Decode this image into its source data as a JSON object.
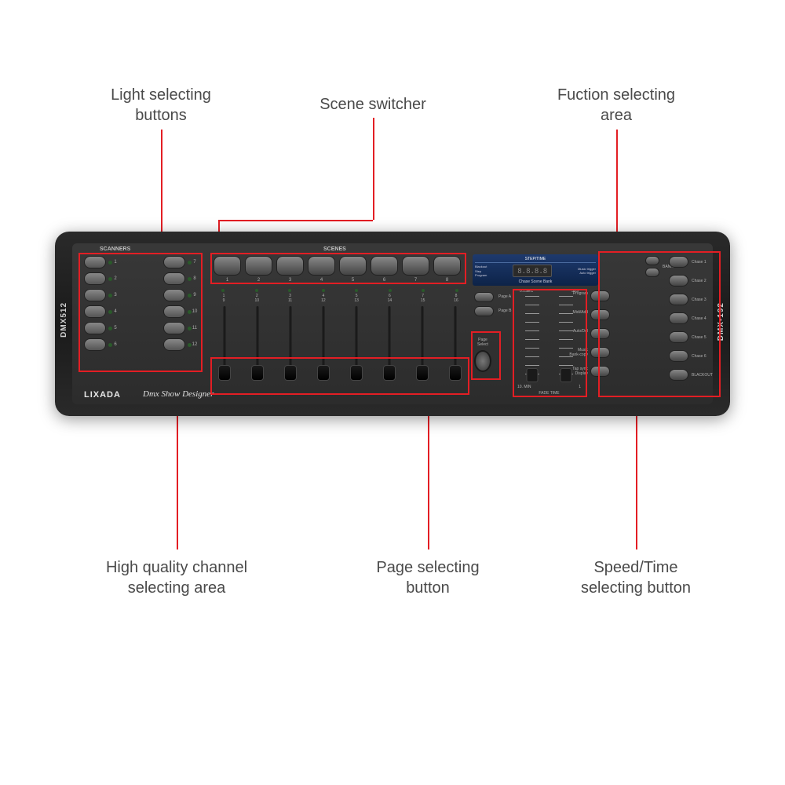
{
  "callouts": {
    "top_left": "Light selecting\nbuttons",
    "top_mid": "Scene switcher",
    "top_right": "Fuction selecting\narea",
    "bottom_left": "High quality channel\nselecting area",
    "bottom_mid": "Page selecting\nbutton",
    "bottom_right": "Speed/Time\nselecting button"
  },
  "controller": {
    "side_left": "DMX512",
    "side_right": "DMX-192",
    "scanners_label": "SCANNERS",
    "scenes_label": "SCENES",
    "brand": "LIXADA",
    "brand_sub": "Dmx Show Designer",
    "scanner_nums_left": [
      "1",
      "2",
      "3",
      "4",
      "5",
      "6"
    ],
    "scanner_nums_right": [
      "7",
      "8",
      "9",
      "10",
      "11",
      "12"
    ],
    "scene_nums": [
      "1",
      "2",
      "3",
      "4",
      "5",
      "6",
      "7",
      "8"
    ],
    "fader_nums_top": [
      "1",
      "2",
      "3",
      "4",
      "5",
      "6",
      "7",
      "8"
    ],
    "fader_nums_bot": [
      "9",
      "10",
      "11",
      "12",
      "13",
      "14",
      "15",
      "16"
    ],
    "lcd": {
      "title": "STEP/TIME",
      "left": "Blackout\nStep\nProgram",
      "display": "8.8.8.8",
      "right": "Music trigger\nAuto trigger",
      "bottom": "Chase Scene Bank"
    },
    "page_a": "Page A",
    "page_b": "Page B",
    "page_select": "Page\nSelect",
    "speed_tl": "0.1SEC",
    "speed_tr": "30S",
    "speed_bl": "10. MIN",
    "speed_br": "1",
    "fadetime": "FADE TIME",
    "func_labels": [
      "Program",
      "Midi/Add",
      "Auto/Del",
      "Music\nBank-copy",
      "Tap sync\nDisplay"
    ],
    "bank": "BANK",
    "chase_labels": [
      "Chase 1",
      "Chase 2",
      "Chase 3",
      "Chase 4",
      "Chase 5",
      "Chase 6",
      "BLACKOUT"
    ]
  },
  "colors": {
    "callout_red": "#e31e24",
    "label_gray": "#4a4a4a"
  }
}
